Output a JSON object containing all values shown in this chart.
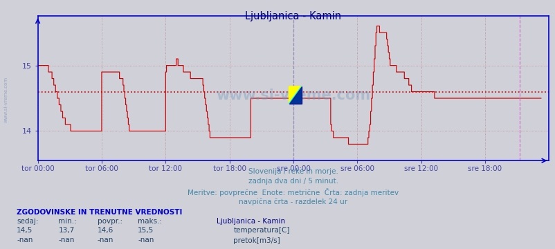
{
  "title": "Ljubljanica - Kamin",
  "title_color": "#000080",
  "bg_color": "#d0d0d8",
  "plot_bg_color": "#d0d0d8",
  "line_color": "#cc0000",
  "avg_line_color": "#cc0000",
  "avg_value": 14.6,
  "vline_24h_color": "#8888bb",
  "vline_end_color": "#cc66cc",
  "grid_color": "#bb7777",
  "axis_color": "#0000cc",
  "tick_color": "#4444aa",
  "ylabel_values": [
    14,
    15
  ],
  "ylim": [
    13.55,
    15.75
  ],
  "x_tick_labels": [
    "tor 00:00",
    "tor 06:00",
    "tor 12:00",
    "tor 18:00",
    "sre 00:00",
    "sre 06:00",
    "sre 12:00",
    "sre 18:00"
  ],
  "x_tick_positions": [
    0,
    72,
    144,
    216,
    288,
    360,
    432,
    504
  ],
  "total_points": 576,
  "footer_line1": "Slovenija / reke in morje.",
  "footer_line2": "zadnja dva dni / 5 minut.",
  "footer_line3": "Meritve: povprečne  Enote: metrične  Črta: zadnja meritev",
  "footer_line4": "navpična črta - razdelek 24 ur",
  "footer_color": "#4488aa",
  "legend_title": "Ljubljanica - Kamin",
  "legend_color": "#000080",
  "stats_header": "ZGODOVINSKE IN TRENUTNE VREDNOSTI",
  "stats_header_color": "#0000cc",
  "stats_labels": [
    "sedaj:",
    "min.:",
    "povpr.:",
    "maks.:"
  ],
  "stats_temp": [
    "14,5",
    "13,7",
    "14,6",
    "15,5"
  ],
  "stats_flow": [
    "-nan",
    "-nan",
    "-nan",
    "-nan"
  ],
  "temp_legend": "temperatura[C]",
  "flow_legend": "pretok[m3/s]",
  "temp_box_color": "#cc0000",
  "flow_box_color": "#00cc00",
  "watermark_color": "#7799bb",
  "temperature_data": [
    15.0,
    15.0,
    15.0,
    15.0,
    15.0,
    15.0,
    15.0,
    15.0,
    15.0,
    15.0,
    15.0,
    15.0,
    14.9,
    14.9,
    14.9,
    14.9,
    14.8,
    14.8,
    14.7,
    14.7,
    14.6,
    14.6,
    14.5,
    14.5,
    14.4,
    14.4,
    14.3,
    14.3,
    14.2,
    14.2,
    14.2,
    14.1,
    14.1,
    14.1,
    14.1,
    14.1,
    14.1,
    14.0,
    14.0,
    14.0,
    14.0,
    14.0,
    14.0,
    14.0,
    14.0,
    14.0,
    14.0,
    14.0,
    14.0,
    14.0,
    14.0,
    14.0,
    14.0,
    14.0,
    14.0,
    14.0,
    14.0,
    14.0,
    14.0,
    14.0,
    14.0,
    14.0,
    14.0,
    14.0,
    14.0,
    14.0,
    14.0,
    14.0,
    14.0,
    14.0,
    14.0,
    14.0,
    14.9,
    14.9,
    14.9,
    14.9,
    14.9,
    14.9,
    14.9,
    14.9,
    14.9,
    14.9,
    14.9,
    14.9,
    14.9,
    14.9,
    14.9,
    14.9,
    14.9,
    14.9,
    14.9,
    14.9,
    14.8,
    14.8,
    14.8,
    14.8,
    14.7,
    14.6,
    14.5,
    14.4,
    14.3,
    14.2,
    14.1,
    14.0,
    14.0,
    14.0,
    14.0,
    14.0,
    14.0,
    14.0,
    14.0,
    14.0,
    14.0,
    14.0,
    14.0,
    14.0,
    14.0,
    14.0,
    14.0,
    14.0,
    14.0,
    14.0,
    14.0,
    14.0,
    14.0,
    14.0,
    14.0,
    14.0,
    14.0,
    14.0,
    14.0,
    14.0,
    14.0,
    14.0,
    14.0,
    14.0,
    14.0,
    14.0,
    14.0,
    14.0,
    14.0,
    14.0,
    14.0,
    14.0,
    14.9,
    15.0,
    15.0,
    15.0,
    15.0,
    15.0,
    15.0,
    15.0,
    15.0,
    15.0,
    15.0,
    15.0,
    15.1,
    15.1,
    15.0,
    15.0,
    15.0,
    15.0,
    15.0,
    15.0,
    14.9,
    14.9,
    14.9,
    14.9,
    14.9,
    14.9,
    14.9,
    14.9,
    14.8,
    14.8,
    14.8,
    14.8,
    14.8,
    14.8,
    14.8,
    14.8,
    14.8,
    14.8,
    14.8,
    14.8,
    14.8,
    14.8,
    14.7,
    14.6,
    14.5,
    14.4,
    14.3,
    14.2,
    14.1,
    14.0,
    13.9,
    13.9,
    13.9,
    13.9,
    13.9,
    13.9,
    13.9,
    13.9,
    13.9,
    13.9,
    13.9,
    13.9,
    13.9,
    13.9,
    13.9,
    13.9,
    13.9,
    13.9,
    13.9,
    13.9,
    13.9,
    13.9,
    13.9,
    13.9,
    13.9,
    13.9,
    13.9,
    13.9,
    13.9,
    13.9,
    13.9,
    13.9,
    13.9,
    13.9,
    13.9,
    13.9,
    13.9,
    13.9,
    13.9,
    13.9,
    13.9,
    13.9,
    13.9,
    13.9,
    13.9,
    13.9,
    14.5,
    14.5,
    14.5,
    14.5,
    14.5,
    14.5,
    14.5,
    14.5,
    14.5,
    14.5,
    14.5,
    14.5,
    14.5,
    14.5,
    14.5,
    14.5,
    14.5,
    14.5,
    14.5,
    14.5,
    14.5,
    14.5,
    14.5,
    14.5,
    14.5,
    14.5,
    14.5,
    14.5,
    14.5,
    14.5,
    14.5,
    14.5,
    14.5,
    14.5,
    14.5,
    14.5,
    14.5,
    14.5,
    14.5,
    14.5,
    14.5,
    14.5,
    14.5,
    14.5,
    14.5,
    14.5,
    14.5,
    14.5,
    14.5,
    14.5,
    14.5,
    14.5,
    14.5,
    14.5,
    14.5,
    14.5,
    14.5,
    14.5,
    14.5,
    14.5,
    14.5,
    14.5,
    14.5,
    14.5,
    14.5,
    14.5,
    14.5,
    14.5,
    14.5,
    14.5,
    14.5,
    14.5,
    14.5,
    14.5,
    14.5,
    14.5,
    14.5,
    14.5,
    14.5,
    14.5,
    14.5,
    14.5,
    14.5,
    14.5,
    14.5,
    14.5,
    14.5,
    14.5,
    14.5,
    14.5,
    14.1,
    14.0,
    14.0,
    13.9,
    13.9,
    13.9,
    13.9,
    13.9,
    13.9,
    13.9,
    13.9,
    13.9,
    13.9,
    13.9,
    13.9,
    13.9,
    13.9,
    13.9,
    13.9,
    13.9,
    13.8,
    13.8,
    13.8,
    13.8,
    13.8,
    13.8,
    13.8,
    13.8,
    13.8,
    13.8,
    13.8,
    13.8,
    13.8,
    13.8,
    13.8,
    13.8,
    13.8,
    13.8,
    13.8,
    13.8,
    13.8,
    13.8,
    13.9,
    14.0,
    14.1,
    14.3,
    14.5,
    14.7,
    14.9,
    15.1,
    15.3,
    15.5,
    15.6,
    15.6,
    15.6,
    15.5,
    15.5,
    15.5,
    15.5,
    15.5,
    15.5,
    15.5,
    15.5,
    15.4,
    15.3,
    15.2,
    15.1,
    15.0,
    15.0,
    15.0,
    15.0,
    15.0,
    15.0,
    15.0,
    14.9,
    14.9,
    14.9,
    14.9,
    14.9,
    14.9,
    14.9,
    14.9,
    14.9,
    14.8,
    14.8,
    14.8,
    14.8,
    14.8,
    14.7,
    14.7,
    14.7,
    14.6,
    14.6,
    14.6,
    14.6,
    14.6,
    14.6,
    14.6,
    14.6,
    14.6,
    14.6,
    14.6,
    14.6,
    14.6,
    14.6,
    14.6,
    14.6,
    14.6,
    14.6,
    14.6,
    14.6,
    14.6,
    14.6,
    14.6,
    14.6,
    14.6,
    14.6,
    14.5,
    14.5,
    14.5,
    14.5,
    14.5,
    14.5,
    14.5,
    14.5,
    14.5,
    14.5,
    14.5,
    14.5,
    14.5,
    14.5,
    14.5,
    14.5,
    14.5,
    14.5,
    14.5,
    14.5,
    14.5,
    14.5,
    14.5,
    14.5,
    14.5,
    14.5,
    14.5,
    14.5,
    14.5,
    14.5,
    14.5,
    14.5,
    14.5,
    14.5,
    14.5,
    14.5,
    14.5,
    14.5,
    14.5,
    14.5,
    14.5,
    14.5,
    14.5,
    14.5,
    14.5,
    14.5,
    14.5,
    14.5,
    14.5,
    14.5,
    14.5,
    14.5,
    14.5,
    14.5,
    14.5,
    14.5,
    14.5,
    14.5,
    14.5,
    14.5,
    14.5,
    14.5,
    14.5,
    14.5,
    14.5,
    14.5,
    14.5,
    14.5,
    14.5,
    14.5,
    14.5,
    14.5,
    14.5,
    14.5,
    14.5,
    14.5,
    14.5,
    14.5,
    14.5,
    14.5,
    14.5,
    14.5,
    14.5,
    14.5,
    14.5,
    14.5,
    14.5,
    14.5,
    14.5,
    14.5,
    14.5,
    14.5,
    14.5,
    14.5,
    14.5,
    14.5,
    14.5,
    14.5,
    14.5,
    14.5,
    14.5,
    14.5,
    14.5,
    14.5,
    14.5,
    14.5,
    14.5,
    14.5,
    14.5,
    14.5,
    14.5,
    14.5,
    14.5,
    14.5,
    14.5,
    14.5,
    14.5,
    14.5,
    14.5,
    14.5,
    14.5
  ]
}
